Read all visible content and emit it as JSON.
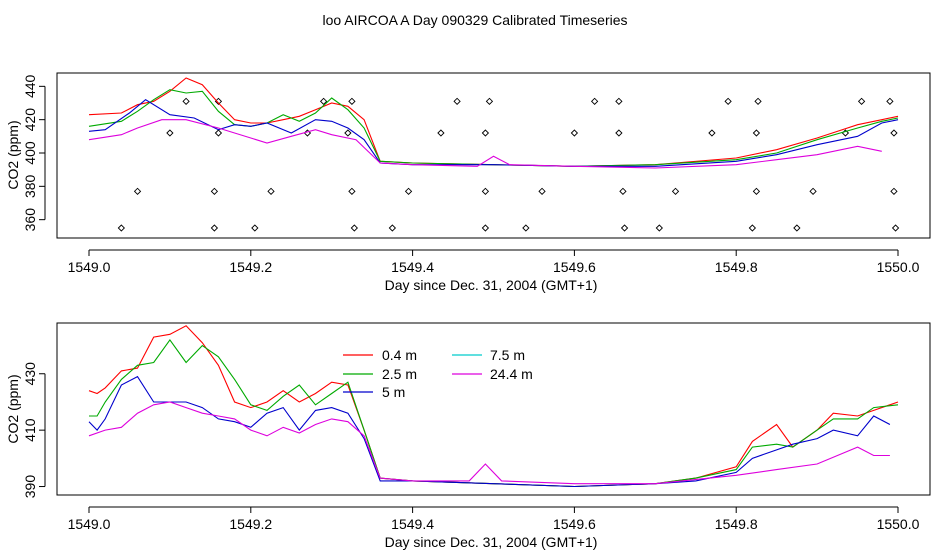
{
  "title": "loo AIRCOA A  Day 090329  Calibrated Timeseries",
  "colors": {
    "0.4 m": "#ff0000",
    "2.5 m": "#00aa00",
    "5 m": "#0000cc",
    "7.5 m": "#00cccc",
    "24.4 m": "#dd00dd"
  },
  "chart_data": [
    {
      "type": "line",
      "xlabel": "Day since Dec. 31, 2004 (GMT+1)",
      "ylabel": "CO2 (ppm)",
      "xlim": [
        1549.0,
        1550.0
      ],
      "ylim": [
        349,
        448
      ],
      "xticks": [
        "1549.0",
        "1549.2",
        "1549.4",
        "1549.6",
        "1549.8",
        "1550.0"
      ],
      "yticks": [
        "360",
        "380",
        "400",
        "420",
        "440"
      ],
      "flags": [
        [
          1549.04,
          355
        ],
        [
          1549.06,
          377
        ],
        [
          1549.1,
          412
        ],
        [
          1549.12,
          431
        ],
        [
          1549.155,
          355
        ],
        [
          1549.155,
          377
        ],
        [
          1549.16,
          412
        ],
        [
          1549.16,
          431
        ],
        [
          1549.205,
          355
        ],
        [
          1549.225,
          377
        ],
        [
          1549.27,
          412
        ],
        [
          1549.29,
          431
        ],
        [
          1549.32,
          412
        ],
        [
          1549.325,
          377
        ],
        [
          1549.325,
          431
        ],
        [
          1549.328,
          355
        ],
        [
          1549.375,
          355
        ],
        [
          1549.395,
          377
        ],
        [
          1549.435,
          412
        ],
        [
          1549.455,
          431
        ],
        [
          1549.49,
          355
        ],
        [
          1549.49,
          377
        ],
        [
          1549.49,
          412
        ],
        [
          1549.495,
          431
        ],
        [
          1549.54,
          355
        ],
        [
          1549.56,
          377
        ],
        [
          1549.6,
          412
        ],
        [
          1549.625,
          431
        ],
        [
          1549.655,
          431
        ],
        [
          1549.655,
          412
        ],
        [
          1549.66,
          377
        ],
        [
          1549.662,
          355
        ],
        [
          1549.705,
          355
        ],
        [
          1549.725,
          377
        ],
        [
          1549.77,
          412
        ],
        [
          1549.79,
          431
        ],
        [
          1549.82,
          355
        ],
        [
          1549.825,
          377
        ],
        [
          1549.825,
          412
        ],
        [
          1549.827,
          431
        ],
        [
          1549.875,
          355
        ],
        [
          1549.895,
          377
        ],
        [
          1549.935,
          412
        ],
        [
          1549.955,
          431
        ],
        [
          1549.99,
          431
        ],
        [
          1549.995,
          412
        ],
        [
          1549.995,
          377
        ],
        [
          1549.997,
          355
        ]
      ],
      "series": [
        {
          "name": "0.4 m",
          "x": [
            1549.0,
            1549.04,
            1549.06,
            1549.08,
            1549.1,
            1549.12,
            1549.14,
            1549.16,
            1549.18,
            1549.2,
            1549.22,
            1549.24,
            1549.26,
            1549.28,
            1549.3,
            1549.32,
            1549.34,
            1549.36,
            1549.4,
            1549.5,
            1549.6,
            1549.7,
            1549.8,
            1549.85,
            1549.9,
            1549.95,
            1549.98,
            1550.0
          ],
          "y": [
            423,
            424,
            429,
            431,
            437,
            445,
            441,
            430,
            420,
            418,
            418,
            420,
            422,
            426,
            430,
            428,
            420,
            395,
            394,
            393,
            392,
            393,
            397,
            402,
            409,
            417,
            420,
            422
          ]
        },
        {
          "name": "2.5 m",
          "x": [
            1549.0,
            1549.04,
            1549.06,
            1549.08,
            1549.1,
            1549.12,
            1549.14,
            1549.16,
            1549.18,
            1549.2,
            1549.22,
            1549.24,
            1549.26,
            1549.28,
            1549.3,
            1549.32,
            1549.34,
            1549.36,
            1549.4,
            1549.5,
            1549.6,
            1549.7,
            1549.8,
            1549.85,
            1549.9,
            1549.95,
            1549.98,
            1550.0
          ],
          "y": [
            416,
            419,
            425,
            432,
            438,
            436,
            437,
            425,
            417,
            416,
            418,
            423,
            419,
            424,
            433,
            426,
            415,
            395,
            394,
            393,
            392,
            393,
            396,
            400,
            408,
            415,
            419,
            421
          ]
        },
        {
          "name": "5 m",
          "x": [
            1549.0,
            1549.02,
            1549.05,
            1549.07,
            1549.1,
            1549.13,
            1549.16,
            1549.18,
            1549.2,
            1549.22,
            1549.25,
            1549.28,
            1549.3,
            1549.32,
            1549.34,
            1549.36,
            1549.4,
            1549.5,
            1549.6,
            1549.7,
            1549.8,
            1549.85,
            1549.9,
            1549.95,
            1549.98,
            1550.0
          ],
          "y": [
            413,
            414,
            424,
            432,
            423,
            421,
            414,
            417,
            416,
            418,
            412,
            420,
            419,
            415,
            408,
            394,
            393,
            393,
            392,
            392,
            395,
            399,
            405,
            410,
            418,
            420
          ]
        },
        {
          "name": "24.4 m",
          "x": [
            1549.0,
            1549.04,
            1549.06,
            1549.09,
            1549.12,
            1549.16,
            1549.2,
            1549.22,
            1549.25,
            1549.28,
            1549.3,
            1549.33,
            1549.36,
            1549.4,
            1549.48,
            1549.5,
            1549.52,
            1549.6,
            1549.7,
            1549.8,
            1549.85,
            1549.9,
            1549.95,
            1549.98
          ],
          "y": [
            408,
            411,
            415,
            420,
            420,
            415,
            409,
            406,
            410,
            414,
            411,
            408,
            394,
            393,
            392,
            398,
            393,
            392,
            391,
            393,
            396,
            399,
            404,
            401
          ]
        }
      ]
    },
    {
      "type": "line",
      "xlabel": "Day since Dec. 31, 2004 (GMT+1)",
      "ylabel": "CO2 (ppm)",
      "xlim": [
        1549.0,
        1550.0
      ],
      "ylim": [
        387,
        448
      ],
      "xticks": [
        "1549.0",
        "1549.2",
        "1549.4",
        "1549.6",
        "1549.8",
        "1550.0"
      ],
      "yticks": [
        "390",
        "410",
        "430"
      ],
      "legend": [
        "0.4 m",
        "2.5 m",
        "5 m",
        "7.5 m",
        "24.4 m"
      ],
      "series": [
        {
          "name": "0.4 m",
          "x": [
            1549.0,
            1549.01,
            1549.02,
            1549.04,
            1549.06,
            1549.08,
            1549.1,
            1549.12,
            1549.14,
            1549.16,
            1549.18,
            1549.2,
            1549.22,
            1549.24,
            1549.26,
            1549.28,
            1549.3,
            1549.32,
            1549.34,
            1549.36,
            1549.4,
            1549.5,
            1549.6,
            1549.7,
            1549.75,
            1549.8,
            1549.82,
            1549.85,
            1549.87,
            1549.9,
            1549.92,
            1549.95,
            1549.97,
            1550.0
          ],
          "y": [
            424,
            423,
            425,
            431,
            432,
            443,
            444,
            447,
            441,
            433,
            420,
            418,
            420,
            424,
            420,
            423,
            427,
            426,
            410,
            393,
            392,
            391,
            390,
            391,
            393,
            397,
            406,
            412,
            404,
            410,
            416,
            415,
            417,
            420
          ]
        },
        {
          "name": "2.5 m",
          "x": [
            1549.0,
            1549.01,
            1549.02,
            1549.04,
            1549.06,
            1549.08,
            1549.1,
            1549.12,
            1549.14,
            1549.16,
            1549.18,
            1549.2,
            1549.22,
            1549.24,
            1549.26,
            1549.28,
            1549.3,
            1549.32,
            1549.34,
            1549.36,
            1549.4,
            1549.5,
            1549.6,
            1549.7,
            1549.75,
            1549.8,
            1549.82,
            1549.85,
            1549.87,
            1549.9,
            1549.92,
            1549.95,
            1549.97,
            1550.0
          ],
          "y": [
            415,
            415,
            420,
            428,
            433,
            434,
            442,
            434,
            440,
            436,
            428,
            419,
            417,
            422,
            426,
            419,
            423,
            427,
            410,
            393,
            392,
            391,
            390,
            391,
            393,
            396,
            404,
            405,
            404,
            410,
            414,
            414,
            418,
            419
          ]
        },
        {
          "name": "5 m",
          "x": [
            1549.0,
            1549.01,
            1549.02,
            1549.04,
            1549.06,
            1549.08,
            1549.1,
            1549.12,
            1549.14,
            1549.16,
            1549.18,
            1549.2,
            1549.22,
            1549.24,
            1549.26,
            1549.28,
            1549.3,
            1549.32,
            1549.34,
            1549.36,
            1549.4,
            1549.5,
            1549.6,
            1549.7,
            1549.75,
            1549.8,
            1549.82,
            1549.85,
            1549.87,
            1549.9,
            1549.92,
            1549.95,
            1549.97,
            1549.99
          ],
          "y": [
            413,
            410,
            414,
            426,
            429,
            420,
            420,
            420,
            418,
            414,
            413,
            411,
            416,
            418,
            410,
            417,
            418,
            416,
            407,
            392,
            392,
            391,
            390,
            391,
            392,
            395,
            400,
            403,
            405,
            407,
            410,
            408,
            415,
            412
          ]
        },
        {
          "name": "24.4 m",
          "x": [
            1549.0,
            1549.02,
            1549.04,
            1549.06,
            1549.08,
            1549.1,
            1549.12,
            1549.14,
            1549.16,
            1549.18,
            1549.2,
            1549.22,
            1549.24,
            1549.26,
            1549.28,
            1549.3,
            1549.32,
            1549.34,
            1549.36,
            1549.4,
            1549.47,
            1549.49,
            1549.51,
            1549.6,
            1549.7,
            1549.8,
            1549.85,
            1549.9,
            1549.95,
            1549.97,
            1549.99
          ],
          "y": [
            408,
            410,
            411,
            416,
            419,
            420,
            418,
            416,
            415,
            414,
            410,
            408,
            411,
            409,
            412,
            414,
            413,
            408,
            393,
            392,
            392,
            398,
            392,
            391,
            391,
            394,
            396,
            398,
            404,
            401,
            401
          ]
        }
      ]
    }
  ]
}
